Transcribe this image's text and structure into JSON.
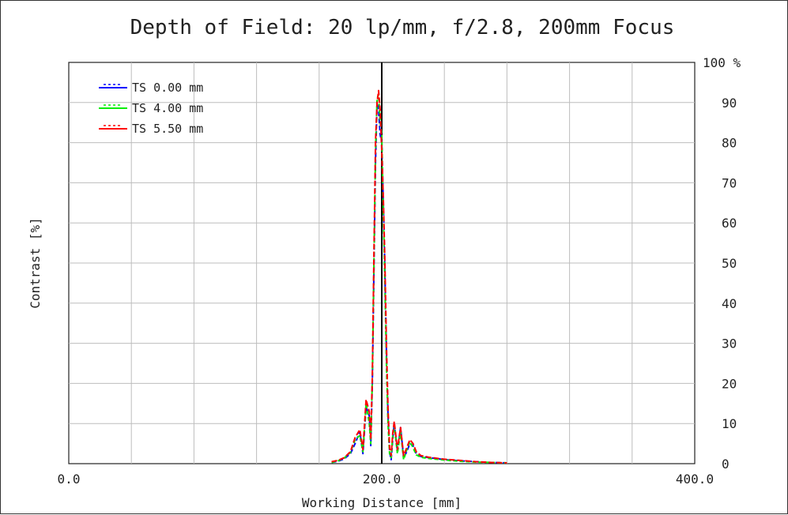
{
  "chart_data": {
    "type": "line",
    "title": "Depth of Field: 20 lp/mm, f/2.8, 200mm Focus",
    "xlabel": "Working Distance [mm]",
    "ylabel": "Contrast [%]",
    "xlim": [
      0,
      400
    ],
    "ylim": [
      0,
      100
    ],
    "x_ticks": [
      {
        "value": 0,
        "label": "0.0"
      },
      {
        "value": 200,
        "label": "200.0"
      },
      {
        "value": 400,
        "label": "400.0"
      }
    ],
    "x_grid_step": 40,
    "y_ticks": [
      {
        "value": 0,
        "label": "0"
      },
      {
        "value": 10,
        "label": "10"
      },
      {
        "value": 20,
        "label": "20"
      },
      {
        "value": 30,
        "label": "30"
      },
      {
        "value": 40,
        "label": "40"
      },
      {
        "value": 50,
        "label": "50"
      },
      {
        "value": 60,
        "label": "60"
      },
      {
        "value": 70,
        "label": "70"
      },
      {
        "value": 80,
        "label": "80"
      },
      {
        "value": 90,
        "label": "90"
      },
      {
        "value": 100,
        "label": "100 %"
      }
    ],
    "grid": true,
    "y_axis_side": "right",
    "focus_marker_x": 200,
    "legend_placement": "top-left",
    "series": [
      {
        "name": "TS 0.00 mm",
        "color": "#0000ff",
        "x": [
          168,
          172,
          176,
          180,
          183,
          186,
          188,
          190,
          192,
          193,
          194,
          195,
          196,
          197,
          198,
          199,
          200,
          201,
          202,
          203,
          204,
          205,
          206,
          207,
          208,
          210,
          212,
          214,
          216,
          218,
          220,
          222,
          225,
          230,
          240,
          250,
          260,
          270,
          280
        ],
        "y": [
          0.3,
          0.6,
          1.2,
          2.5,
          5,
          8,
          2.5,
          14,
          12,
          4.5,
          20,
          48,
          75,
          90,
          88,
          82,
          80,
          65,
          48,
          28,
          12,
          3,
          1,
          6,
          10,
          3,
          9,
          1.5,
          3,
          5,
          4.5,
          2.5,
          1.8,
          1.5,
          1,
          0.7,
          0.5,
          0.3,
          0.2
        ]
      },
      {
        "name": "TS 4.00 mm",
        "color": "#00ee00",
        "x": [
          168,
          172,
          176,
          180,
          183,
          186,
          188,
          190,
          192,
          193,
          194,
          195,
          196,
          197,
          198,
          199,
          200,
          201,
          202,
          203,
          204,
          205,
          206,
          207,
          208,
          210,
          212,
          214,
          216,
          218,
          220,
          222,
          225,
          230,
          240,
          250,
          260,
          270,
          280
        ],
        "y": [
          0.3,
          0.7,
          1.4,
          2.8,
          6,
          7,
          3,
          15,
          10,
          5,
          21,
          50,
          78,
          91,
          92,
          85,
          82,
          62,
          45,
          25,
          10,
          2.5,
          1.5,
          7,
          9.5,
          2.5,
          8,
          1,
          3.5,
          5.5,
          4,
          2.2,
          1.6,
          1.3,
          0.9,
          0.6,
          0.4,
          0.3,
          0.2
        ]
      },
      {
        "name": "TS 5.50 mm",
        "color": "#ff0000",
        "x": [
          168,
          172,
          176,
          180,
          183,
          186,
          188,
          190,
          192,
          193,
          194,
          195,
          196,
          197,
          198,
          199,
          200,
          201,
          202,
          203,
          204,
          205,
          206,
          207,
          208,
          210,
          212,
          214,
          216,
          218,
          220,
          222,
          225,
          230,
          240,
          250,
          260,
          270,
          280
        ],
        "y": [
          0.5,
          0.8,
          1.5,
          3,
          6.5,
          8.5,
          3.5,
          16,
          13,
          6,
          22,
          52,
          80,
          90,
          93,
          88,
          78,
          66,
          50,
          30,
          14,
          4,
          2,
          7.5,
          10.5,
          3.5,
          9,
          2,
          4,
          6,
          5,
          3,
          2,
          1.6,
          1.1,
          0.8,
          0.5,
          0.3,
          0.2
        ]
      }
    ]
  }
}
